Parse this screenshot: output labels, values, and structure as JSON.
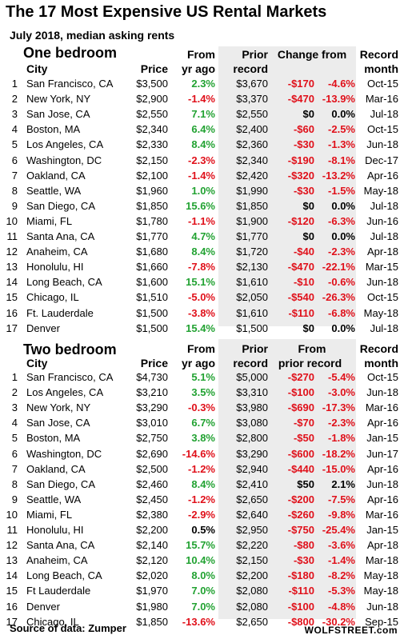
{
  "title": "The 17 Most Expensive US Rental Markets",
  "subtitle": "July 2018, median asking rents",
  "colors": {
    "positive": "#22a232",
    "negative": "#e0101a",
    "shade": "#ececec"
  },
  "one_bedroom": {
    "section_title": "One bedroom",
    "headers": {
      "city": "City",
      "price": "Price",
      "from_top": "From",
      "from_bottom": "yr ago",
      "prior_top": "Prior",
      "prior_bottom": "record",
      "change": "Change from",
      "record_top": "Record",
      "record_bottom": "month"
    },
    "rows": [
      {
        "n": "1",
        "city": "San Francisco, CA",
        "price": "$3,500",
        "chg": "2.3%",
        "chg_s": "pos",
        "prior": "$3,670",
        "dabs": "-$170",
        "dpct": "-4.6%",
        "d_s": "neg",
        "month": "Oct-15"
      },
      {
        "n": "2",
        "city": "New York, NY",
        "price": "$2,900",
        "chg": "-1.4%",
        "chg_s": "neg",
        "prior": "$3,370",
        "dabs": "-$470",
        "dpct": "-13.9%",
        "d_s": "neg",
        "month": "Mar-16"
      },
      {
        "n": "3",
        "city": "San Jose, CA",
        "price": "$2,550",
        "chg": "7.1%",
        "chg_s": "pos",
        "prior": "$2,550",
        "dabs": "$0",
        "dpct": "0.0%",
        "d_s": "zero",
        "month": "Jul-18"
      },
      {
        "n": "4",
        "city": "Boston, MA",
        "price": "$2,340",
        "chg": "6.4%",
        "chg_s": "pos",
        "prior": "$2,400",
        "dabs": "-$60",
        "dpct": "-2.5%",
        "d_s": "neg",
        "month": "Oct-15"
      },
      {
        "n": "5",
        "city": "Los Angeles, CA",
        "price": "$2,330",
        "chg": "8.4%",
        "chg_s": "pos",
        "prior": "$2,360",
        "dabs": "-$30",
        "dpct": "-1.3%",
        "d_s": "neg",
        "month": "Jun-18"
      },
      {
        "n": "6",
        "city": "Washington, DC",
        "price": "$2,150",
        "chg": "-2.3%",
        "chg_s": "neg",
        "prior": "$2,340",
        "dabs": "-$190",
        "dpct": "-8.1%",
        "d_s": "neg",
        "month": "Dec-17"
      },
      {
        "n": "7",
        "city": "Oakland, CA",
        "price": "$2,100",
        "chg": "-1.4%",
        "chg_s": "neg",
        "prior": "$2,420",
        "dabs": "-$320",
        "dpct": "-13.2%",
        "d_s": "neg",
        "month": "Apr-16"
      },
      {
        "n": "8",
        "city": "Seattle, WA",
        "price": "$1,960",
        "chg": "1.0%",
        "chg_s": "pos",
        "prior": "$1,990",
        "dabs": "-$30",
        "dpct": "-1.5%",
        "d_s": "neg",
        "month": "May-18"
      },
      {
        "n": "9",
        "city": "San Diego, CA",
        "price": "$1,850",
        "chg": "15.6%",
        "chg_s": "pos",
        "prior": "$1,850",
        "dabs": "$0",
        "dpct": "0.0%",
        "d_s": "zero",
        "month": "Jul-18"
      },
      {
        "n": "10",
        "city": "Miami, FL",
        "price": "$1,780",
        "chg": "-1.1%",
        "chg_s": "neg",
        "prior": "$1,900",
        "dabs": "-$120",
        "dpct": "-6.3%",
        "d_s": "neg",
        "month": "Jun-16"
      },
      {
        "n": "11",
        "city": "Santa Ana, CA",
        "price": "$1,770",
        "chg": "4.7%",
        "chg_s": "pos",
        "prior": "$1,770",
        "dabs": "$0",
        "dpct": "0.0%",
        "d_s": "zero",
        "month": "Jul-18"
      },
      {
        "n": "12",
        "city": "Anaheim, CA",
        "price": "$1,680",
        "chg": "8.4%",
        "chg_s": "pos",
        "prior": "$1,720",
        "dabs": "-$40",
        "dpct": "-2.3%",
        "d_s": "neg",
        "month": "Apr-18"
      },
      {
        "n": "13",
        "city": "Honolulu, HI",
        "price": "$1,660",
        "chg": "-7.8%",
        "chg_s": "neg",
        "prior": "$2,130",
        "dabs": "-$470",
        "dpct": "-22.1%",
        "d_s": "neg",
        "month": "Mar-15"
      },
      {
        "n": "14",
        "city": "Long Beach, CA",
        "price": "$1,600",
        "chg": "15.1%",
        "chg_s": "pos",
        "prior": "$1,610",
        "dabs": "-$10",
        "dpct": "-0.6%",
        "d_s": "neg",
        "month": "Jun-18"
      },
      {
        "n": "15",
        "city": "Chicago, IL",
        "price": "$1,510",
        "chg": "-5.0%",
        "chg_s": "neg",
        "prior": "$2,050",
        "dabs": "-$540",
        "dpct": "-26.3%",
        "d_s": "neg",
        "month": "Oct-15"
      },
      {
        "n": "16",
        "city": "Ft. Lauderdale",
        "price": "$1,500",
        "chg": "-3.8%",
        "chg_s": "neg",
        "prior": "$1,610",
        "dabs": "-$110",
        "dpct": "-6.8%",
        "d_s": "neg",
        "month": "May-18"
      },
      {
        "n": "17",
        "city": "Denver",
        "price": "$1,500",
        "chg": "15.4%",
        "chg_s": "pos",
        "prior": "$1,500",
        "dabs": "$0",
        "dpct": "0.0%",
        "d_s": "zero",
        "month": "Jul-18"
      }
    ]
  },
  "two_bedroom": {
    "section_title": "Two bedroom",
    "headers": {
      "city": "City",
      "price": "Price",
      "from_top": "From",
      "from_bottom": "yr ago",
      "prior_top": "Prior",
      "prior_bottom": "record",
      "change_top": "From",
      "change_bottom": "prior record",
      "record_top": "Record",
      "record_bottom": "month"
    },
    "rows": [
      {
        "n": "1",
        "city": "San Francisco, CA",
        "price": "$4,730",
        "chg": "5.1%",
        "chg_s": "pos",
        "prior": "$5,000",
        "dabs": "-$270",
        "dpct": "-5.4%",
        "d_s": "neg",
        "month": "Oct-15"
      },
      {
        "n": "2",
        "city": "Los Angeles, CA",
        "price": "$3,210",
        "chg": "3.5%",
        "chg_s": "pos",
        "prior": "$3,310",
        "dabs": "-$100",
        "dpct": "-3.0%",
        "d_s": "neg",
        "month": "Jun-18"
      },
      {
        "n": "3",
        "city": "New York, NY",
        "price": "$3,290",
        "chg": "-0.3%",
        "chg_s": "neg",
        "prior": "$3,980",
        "dabs": "-$690",
        "dpct": "-17.3%",
        "d_s": "neg",
        "month": "Mar-16"
      },
      {
        "n": "4",
        "city": "San Jose, CA",
        "price": "$3,010",
        "chg": "6.7%",
        "chg_s": "pos",
        "prior": "$3,080",
        "dabs": "-$70",
        "dpct": "-2.3%",
        "d_s": "neg",
        "month": "Apr-16"
      },
      {
        "n": "5",
        "city": "Boston, MA",
        "price": "$2,750",
        "chg": "3.8%",
        "chg_s": "pos",
        "prior": "$2,800",
        "dabs": "-$50",
        "dpct": "-1.8%",
        "d_s": "neg",
        "month": "Jan-15"
      },
      {
        "n": "6",
        "city": "Washington, DC",
        "price": "$2,690",
        "chg": "-14.6%",
        "chg_s": "neg",
        "prior": "$3,290",
        "dabs": "-$600",
        "dpct": "-18.2%",
        "d_s": "neg",
        "month": "Jun-17"
      },
      {
        "n": "7",
        "city": "Oakland, CA",
        "price": "$2,500",
        "chg": "-1.2%",
        "chg_s": "neg",
        "prior": "$2,940",
        "dabs": "-$440",
        "dpct": "-15.0%",
        "d_s": "neg",
        "month": "Apr-16"
      },
      {
        "n": "8",
        "city": "San Diego, CA",
        "price": "$2,460",
        "chg": "8.4%",
        "chg_s": "pos",
        "prior": "$2,410",
        "dabs": "$50",
        "dpct": "2.1%",
        "d_s": "zero",
        "month": "Jun-18"
      },
      {
        "n": "9",
        "city": "Seattle, WA",
        "price": "$2,450",
        "chg": "-1.2%",
        "chg_s": "neg",
        "prior": "$2,650",
        "dabs": "-$200",
        "dpct": "-7.5%",
        "d_s": "neg",
        "month": "Apr-16"
      },
      {
        "n": "10",
        "city": "Miami, FL",
        "price": "$2,380",
        "chg": "-2.9%",
        "chg_s": "neg",
        "prior": "$2,640",
        "dabs": "-$260",
        "dpct": "-9.8%",
        "d_s": "neg",
        "month": "Mar-16"
      },
      {
        "n": "11",
        "city": "Honolulu, HI",
        "price": "$2,200",
        "chg": "0.5%",
        "chg_s": "zero",
        "prior": "$2,950",
        "dabs": "-$750",
        "dpct": "-25.4%",
        "d_s": "neg",
        "month": "Jan-15"
      },
      {
        "n": "12",
        "city": "Santa Ana, CA",
        "price": "$2,140",
        "chg": "15.7%",
        "chg_s": "pos",
        "prior": "$2,220",
        "dabs": "-$80",
        "dpct": "-3.6%",
        "d_s": "neg",
        "month": "Apr-18"
      },
      {
        "n": "13",
        "city": "Anaheim, CA",
        "price": "$2,120",
        "chg": "10.4%",
        "chg_s": "pos",
        "prior": "$2,150",
        "dabs": "-$30",
        "dpct": "-1.4%",
        "d_s": "neg",
        "month": "Mar-18"
      },
      {
        "n": "14",
        "city": "Long Beach, CA",
        "price": "$2,020",
        "chg": "8.0%",
        "chg_s": "pos",
        "prior": "$2,200",
        "dabs": "-$180",
        "dpct": "-8.2%",
        "d_s": "neg",
        "month": "May-18"
      },
      {
        "n": "15",
        "city": "Ft Lauderdale",
        "price": "$1,970",
        "chg": "7.0%",
        "chg_s": "pos",
        "prior": "$2,080",
        "dabs": "-$110",
        "dpct": "-5.3%",
        "d_s": "neg",
        "month": "May-18"
      },
      {
        "n": "16",
        "city": "Denver",
        "price": "$1,980",
        "chg": "7.0%",
        "chg_s": "pos",
        "prior": "$2,080",
        "dabs": "-$100",
        "dpct": "-4.8%",
        "d_s": "neg",
        "month": "Jun-18"
      },
      {
        "n": "17",
        "city": "Chicago, IL",
        "price": "$1,850",
        "chg": "-13.6%",
        "chg_s": "neg",
        "prior": "$2,650",
        "dabs": "-$800",
        "dpct": "-30.2%",
        "d_s": "neg",
        "month": "Sep-15"
      }
    ]
  },
  "footer": {
    "source": "Source of data: Zumper",
    "logo": "WOLFSTREET.com"
  }
}
